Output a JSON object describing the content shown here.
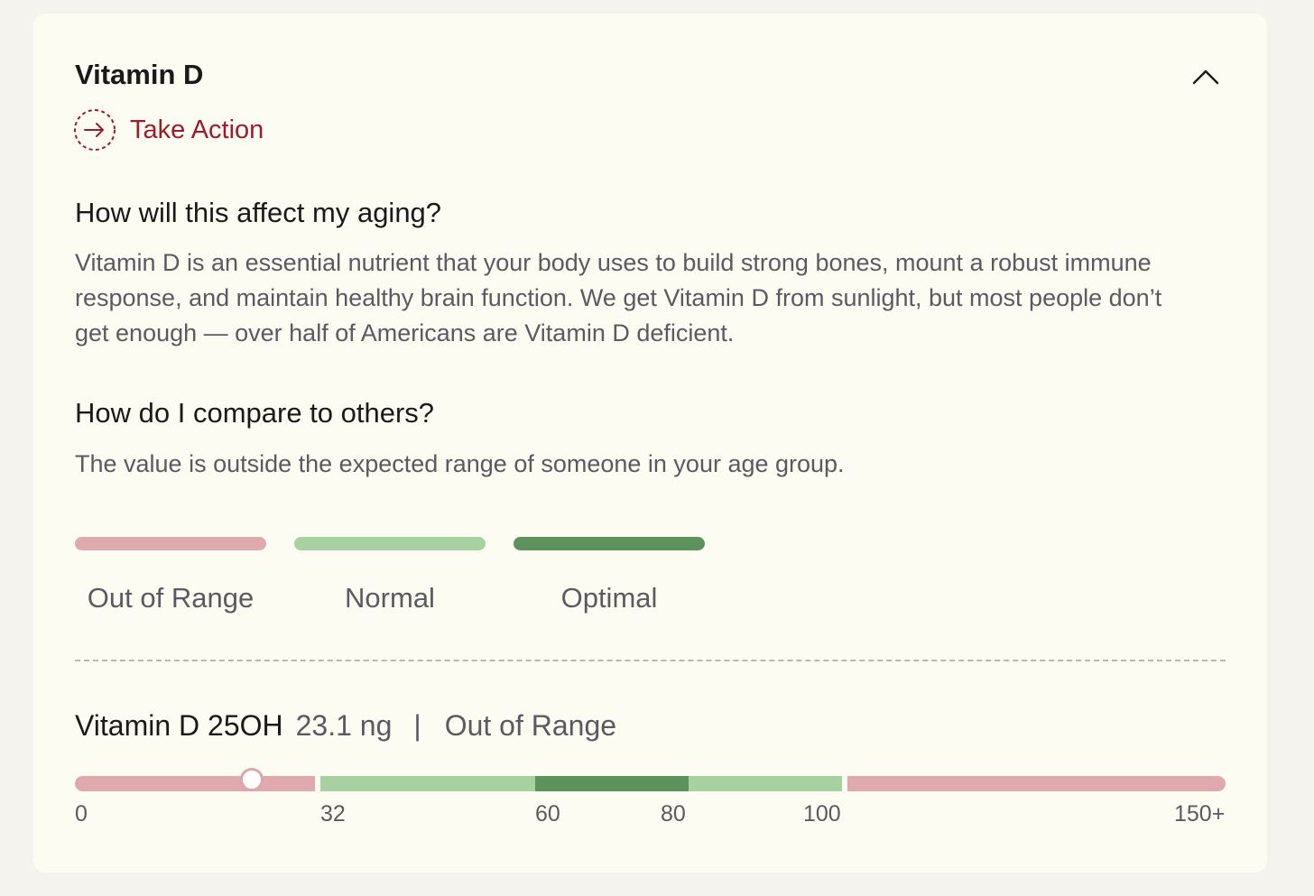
{
  "card": {
    "title": "Vitamin D",
    "collapse_icon": "chevron-up-icon",
    "take_action": {
      "label": "Take Action",
      "icon": "arrow-right-circle-icon",
      "color": "#9b1c2c"
    }
  },
  "aging": {
    "heading": "How will this affect my aging?",
    "body": "Vitamin D is an essential nutrient that your body uses to build strong bones, mount a robust immune response, and maintain healthy brain function. We get Vitamin D from sunlight, but most people don’t get enough — over half of Americans are Vitamin D deficient."
  },
  "compare": {
    "heading": "How do I compare to others?",
    "body": "The value is outside the expected range of someone in your age group."
  },
  "legend": [
    {
      "label": "Out of Range",
      "color": "#dfa9ae"
    },
    {
      "label": "Normal",
      "color": "#a8d1a2"
    },
    {
      "label": "Optimal",
      "color": "#5c935c"
    }
  ],
  "result": {
    "name": "Vitamin D 25OH",
    "value": "23.1 ng",
    "separator": "|",
    "status": "Out of Range",
    "numeric_value": 23.1
  },
  "scale": {
    "ticks": [
      "0",
      "32",
      "60",
      "80",
      "100",
      "150+"
    ],
    "segments": [
      {
        "from": 0,
        "to": 32,
        "category": "Out of Range"
      },
      {
        "from": 32,
        "to": 60,
        "category": "Normal"
      },
      {
        "from": 60,
        "to": 80,
        "category": "Optimal"
      },
      {
        "from": 80,
        "to": 100,
        "category": "Normal"
      },
      {
        "from": 100,
        "to": 150,
        "category": "Out of Range"
      }
    ]
  }
}
